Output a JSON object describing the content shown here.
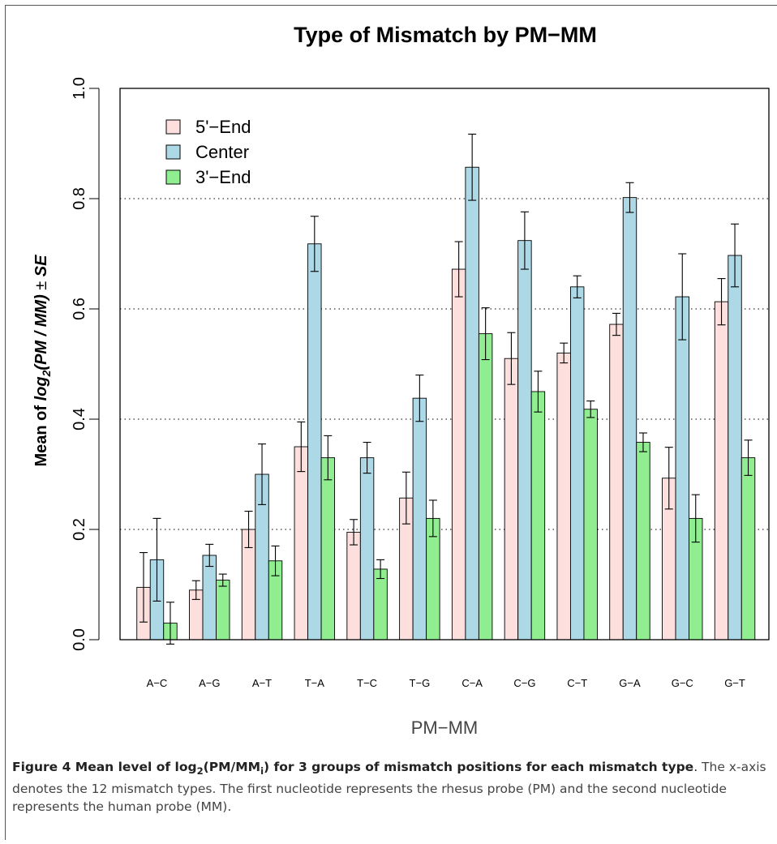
{
  "chart_data": {
    "type": "bar",
    "title": "Type of Mismatch by PM−MM",
    "xlabel": "PM−MM",
    "ylabel": "Mean of log2(PM / MM) ± SE",
    "ylabel_parts": {
      "prefix": "Mean of ",
      "log": "log",
      "sub": "2",
      "expr": "(PM / MM)",
      "pm": " ± ",
      "se": "SE"
    },
    "ylim": [
      0,
      1.0
    ],
    "yticks": [
      "0.0",
      "0.2",
      "0.4",
      "0.6",
      "0.8",
      "1.0"
    ],
    "gridlines": [
      0.2,
      0.4,
      0.6,
      0.8
    ],
    "grid": "dotted horizontal",
    "legend_position": "top-left",
    "categories": [
      "A−C",
      "A−G",
      "A−T",
      "T−A",
      "T−C",
      "T−G",
      "C−A",
      "C−G",
      "C−T",
      "G−A",
      "G−C",
      "G−T"
    ],
    "series": [
      {
        "name": "5'−End",
        "color": "#fde0dd",
        "values": [
          0.095,
          0.09,
          0.2,
          0.35,
          0.195,
          0.257,
          0.672,
          0.51,
          0.52,
          0.572,
          0.293,
          0.613
        ],
        "se": [
          0.063,
          0.017,
          0.033,
          0.045,
          0.023,
          0.047,
          0.05,
          0.047,
          0.018,
          0.02,
          0.056,
          0.042
        ]
      },
      {
        "name": "Center",
        "color": "#add8e6",
        "values": [
          0.145,
          0.153,
          0.3,
          0.718,
          0.33,
          0.438,
          0.857,
          0.724,
          0.64,
          0.802,
          0.622,
          0.697
        ],
        "se": [
          0.075,
          0.02,
          0.055,
          0.05,
          0.028,
          0.042,
          0.06,
          0.052,
          0.02,
          0.027,
          0.078,
          0.057
        ]
      },
      {
        "name": "3'−End",
        "color": "#90ee90",
        "values": [
          0.03,
          0.108,
          0.143,
          0.33,
          0.128,
          0.22,
          0.555,
          0.45,
          0.418,
          0.358,
          0.22,
          0.33
        ],
        "se": [
          0.038,
          0.011,
          0.027,
          0.04,
          0.017,
          0.033,
          0.047,
          0.037,
          0.015,
          0.017,
          0.043,
          0.032
        ]
      }
    ]
  },
  "caption": {
    "title_prefix": "Figure 4 Mean level of log",
    "title_sub1": "2",
    "title_mid": "(PM/MM",
    "title_sub2": "i",
    "title_suffix": ") for 3 groups of mismatch positions for each mismatch type",
    "title_end": ".",
    "body": " The x-axis denotes the 12 mismatch types. The first nucleotide represents the rhesus probe (PM) and the second nucleotide represents the human probe (MM)."
  }
}
